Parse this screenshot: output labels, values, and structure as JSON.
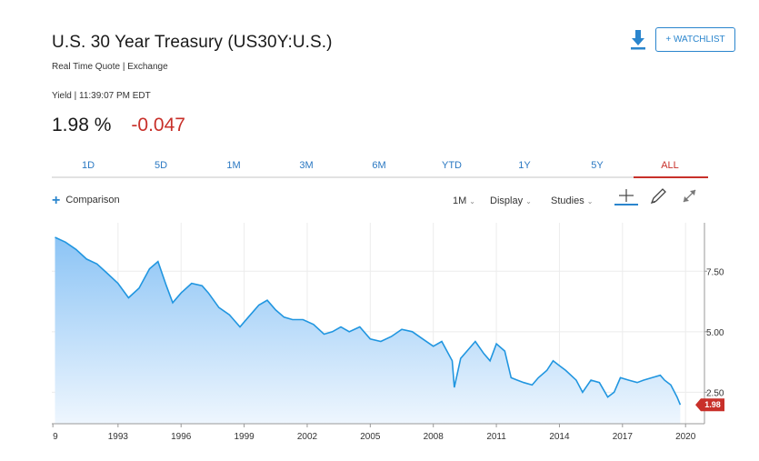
{
  "header": {
    "title": "U.S. 30 Year Treasury (US30Y:U.S.)",
    "subtitle": "Real Time Quote | Exchange",
    "yield_line": "Yield | 11:39:07 PM EDT",
    "price": "1.98 %",
    "change": "-0.047",
    "watchlist_label": "+ WATCHLIST"
  },
  "tabs": [
    "1D",
    "5D",
    "1M",
    "3M",
    "6M",
    "YTD",
    "1Y",
    "5Y",
    "ALL"
  ],
  "active_tab": "ALL",
  "toolbar": {
    "comparison_label": "Comparison",
    "interval_label": "1M",
    "display_label": "Display",
    "studies_label": "Studies"
  },
  "colors": {
    "accent_blue": "#2a85cd",
    "negative_red": "#c8302a",
    "line": "#2196e0",
    "area_top": "#8cc4f5",
    "area_bottom": "#e8f3fd"
  },
  "icons": [
    "download-icon",
    "crosshair-icon",
    "pencil-icon",
    "expand-icon"
  ],
  "chart_data": {
    "type": "area",
    "series": [
      {
        "x": [
          1990.0,
          1990.5,
          1991.0,
          1991.5,
          1992.0,
          1992.5,
          1993.0,
          1993.5,
          1994.0,
          1994.5,
          1994.9,
          1995.3,
          1995.6,
          1996.0,
          1996.5,
          1997.0,
          1997.3,
          1997.8,
          1998.3,
          1998.8,
          1999.2,
          1999.7,
          2000.1,
          2000.5,
          2000.9,
          2001.3,
          2001.8,
          2002.3,
          2002.8,
          2003.2,
          2003.6,
          2004.0,
          2004.5,
          2005.0,
          2005.5,
          2006.0,
          2006.5,
          2007.0,
          2007.5,
          2008.0,
          2008.4,
          2008.9,
          2009.0,
          2009.3,
          2009.7,
          2010.0,
          2010.4,
          2010.7,
          2011.0,
          2011.4,
          2011.7,
          2012.0,
          2012.3,
          2012.7,
          2013.0,
          2013.4,
          2013.7,
          2014.0,
          2014.3,
          2014.8,
          2015.1,
          2015.5,
          2015.9,
          2016.3,
          2016.6,
          2016.9,
          2017.3,
          2017.7,
          2018.0,
          2018.4,
          2018.8,
          2019.0,
          2019.3,
          2019.6,
          2019.75
        ],
        "values": [
          8.9,
          8.7,
          8.4,
          8.0,
          7.8,
          7.4,
          7.0,
          6.4,
          6.8,
          7.6,
          7.9,
          6.9,
          6.2,
          6.6,
          7.0,
          6.9,
          6.6,
          6.0,
          5.7,
          5.2,
          5.6,
          6.1,
          6.3,
          5.9,
          5.6,
          5.5,
          5.5,
          5.3,
          4.9,
          5.0,
          5.2,
          5.0,
          5.2,
          4.7,
          4.6,
          4.8,
          5.1,
          5.0,
          4.7,
          4.4,
          4.6,
          3.8,
          2.7,
          3.9,
          4.3,
          4.6,
          4.1,
          3.8,
          4.5,
          4.2,
          3.1,
          3.0,
          2.9,
          2.8,
          3.1,
          3.4,
          3.8,
          3.6,
          3.4,
          3.0,
          2.5,
          3.0,
          2.9,
          2.3,
          2.5,
          3.1,
          3.0,
          2.9,
          3.0,
          3.1,
          3.2,
          3.0,
          2.8,
          2.3,
          1.98
        ]
      }
    ],
    "xticks": [
      "9",
      "1993",
      "1996",
      "1999",
      "2002",
      "2005",
      "2008",
      "2011",
      "2014",
      "2017",
      "2020"
    ],
    "yticks": [
      "7.50",
      "5.00",
      "2.50"
    ],
    "last_value_label": "1.98",
    "xlim": [
      1989.85,
      2020.9
    ],
    "ylim": [
      1.2,
      9.5
    ],
    "grid": true
  }
}
